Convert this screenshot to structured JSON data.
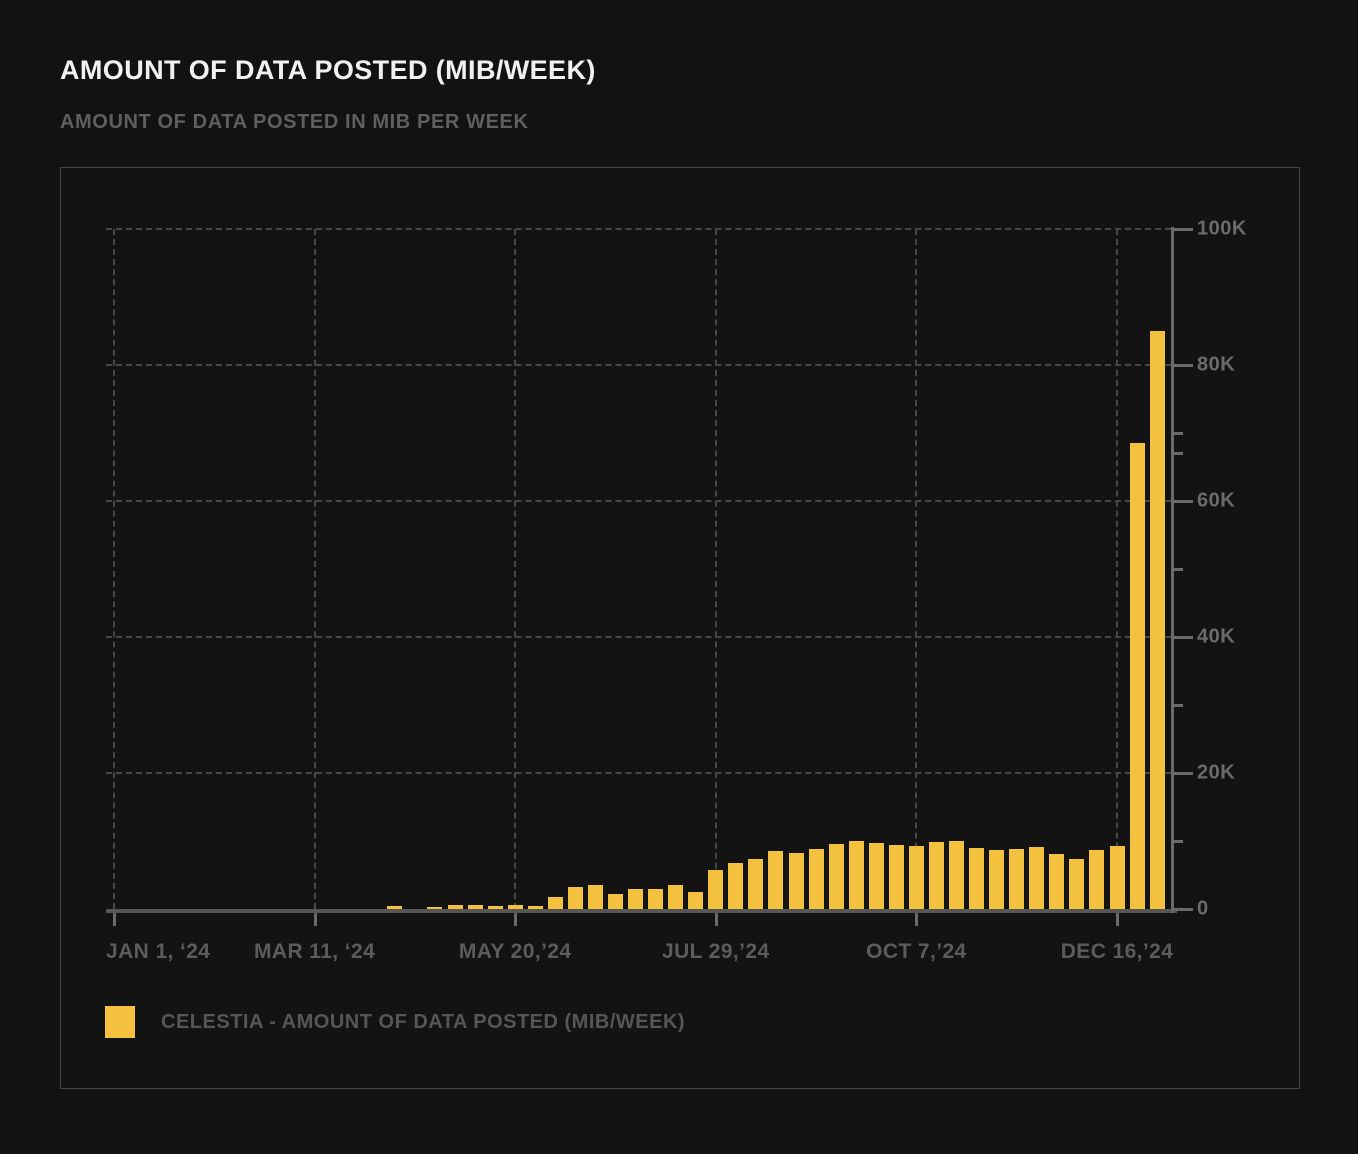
{
  "header": {
    "title": "AMOUNT OF DATA POSTED (MIB/WEEK)",
    "subtitle": "AMOUNT OF DATA POSTED IN MIB PER WEEK"
  },
  "legend": {
    "label": "CELESTIA - AMOUNT OF DATA POSTED (MIB/WEEK)"
  },
  "colors": {
    "background": "#121212",
    "panel_border": "#454545",
    "bar": "#F3C13D",
    "grid": "#474747",
    "axis": "#6a6a6a",
    "title_text": "#f1f1f1",
    "muted_text": "#5f5f5f"
  },
  "chart_data": {
    "type": "bar",
    "title": "Amount of Data Posted (MiB/week)",
    "ylabel": "MiB per week",
    "ylim": [
      0,
      100000
    ],
    "grid": "dashed",
    "legend_position": "bottom-left",
    "x_unit": "week",
    "x_tick_weeks": [
      0,
      10,
      20,
      30,
      40,
      50
    ],
    "x_tick_labels": [
      "JAN 1, ‘24",
      "MAR 11, ‘24",
      "MAY 20,’24",
      "JUL 29,’24",
      "OCT 7,’24",
      "DEC 16,’24"
    ],
    "y_tick_values": [
      0,
      20000,
      40000,
      60000,
      80000,
      100000
    ],
    "y_tick_labels": [
      "0",
      "20K",
      "40K",
      "60K",
      "80K",
      "100K"
    ],
    "y_minor_tick_values": [
      10000,
      30000,
      50000,
      67000,
      70000
    ],
    "series": [
      {
        "name": "Celestia - Amount of Data Posted (MiB/week)",
        "color": "#F3C13D",
        "values": [
          0,
          0,
          0,
          0,
          0,
          0,
          0,
          0,
          0,
          0,
          0,
          0,
          0,
          0,
          400,
          0,
          300,
          600,
          600,
          500,
          600,
          500,
          1800,
          3200,
          3600,
          2200,
          3000,
          3000,
          3600,
          2500,
          5800,
          6700,
          7400,
          8600,
          8200,
          8800,
          9500,
          10000,
          9700,
          9400,
          9300,
          9800,
          10000,
          9000,
          8700,
          8800,
          9100,
          8100,
          7400,
          8700,
          9300,
          68500,
          85000
        ]
      }
    ]
  }
}
